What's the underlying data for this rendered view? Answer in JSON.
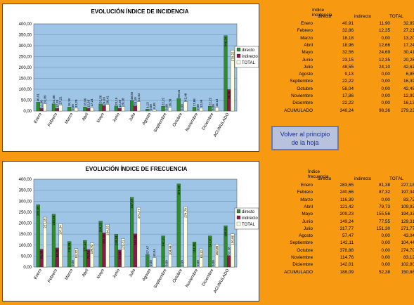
{
  "chart_data": [
    {
      "type": "bar",
      "title": "EVOLUCIÓN ÍNDICE DE INCIDENCIA",
      "categories": [
        "Enero",
        "Febrero",
        "Marzo",
        "Abril",
        "Mayo",
        "Junio",
        "Julio",
        "Agosto",
        "Septiembre",
        "Octubre",
        "Noviembre",
        "Diciembre",
        "ACUMULADO"
      ],
      "series": [
        {
          "name": "directo",
          "color": "#2e8b2e",
          "values": [
            40.91,
            32.86,
            18.18,
            18.96,
            32.56,
            23.15,
            48.55,
            9.13,
            22.22,
            58.04,
            17.86,
            22.22,
            346.24
          ]
        },
        {
          "name": "indirecto",
          "color": "#8b1a4a",
          "values": [
            11.9,
            12.35,
            0.0,
            12.66,
            24.69,
            12.35,
            24.1,
            0.0,
            0.0,
            0.0,
            0.0,
            0.0,
            98.36
          ]
        },
        {
          "name": "TOTAL",
          "color": "#ffffdd",
          "values": [
            32.89,
            27.21,
            13.2,
            17.24,
            30.41,
            20.28,
            42.62,
            6.85,
            16.39,
            42.48,
            12.99,
            16.13,
            279.22
          ]
        }
      ],
      "yticks": [
        "0,00",
        "50,00",
        "100,00",
        "150,00",
        "200,00",
        "250,00",
        "300,00",
        "350,00",
        "400,00"
      ],
      "ylim": [
        0,
        400
      ],
      "legend": "right"
    },
    {
      "type": "bar",
      "title": "EVOLUCIÓN ÍNDICE DE FRECUENCIA",
      "categories": [
        "Enero",
        "Febrero",
        "Marzo",
        "Abril",
        "Mayo",
        "Junio",
        "Julio",
        "Agosto",
        "Septiembre",
        "Octubre",
        "Noviembre",
        "Diciembre",
        "ACUMULADO"
      ],
      "series": [
        {
          "name": "directo",
          "color": "#2e8b2e",
          "values": [
            283.65,
            240.66,
            116.39,
            121.42,
            209.23,
            149.24,
            317.77,
            57.47,
            142.11,
            378.88,
            114.76,
            142.01,
            188.09
          ]
        },
        {
          "name": "indirecto",
          "color": "#8b1a4a",
          "values": [
            81.38,
            87.32,
            0.0,
            79.73,
            155.56,
            77.55,
            151.3,
            0.0,
            0.0,
            0.0,
            0.0,
            0.0,
            52.38
          ]
        },
        {
          "name": "TOTAL",
          "color": "#ffffdd",
          "values": [
            227.18,
            197.34,
            83.72,
            109.92,
            194.33,
            129.31,
            271.77,
            43.04,
            104.44,
            274.7,
            83.12,
            102.8,
            150.86
          ]
        }
      ],
      "yticks": [
        "0,00",
        "50,00",
        "100,00",
        "150,00",
        "200,00",
        "250,00",
        "300,00",
        "350,00",
        "400,00"
      ],
      "ylim": [
        0,
        400
      ],
      "legend": "right"
    }
  ],
  "table1": {
    "header_main": "índice incidencia",
    "header_directo": "directo",
    "header_indirecto": "indirecto",
    "header_total": "TOTAL",
    "rows": [
      [
        "Enero",
        "40,91",
        "11,90",
        "32,89"
      ],
      [
        "Febrero",
        "32,86",
        "12,35",
        "27,21"
      ],
      [
        "Marzo",
        "18,18",
        "0,00",
        "13,20"
      ],
      [
        "Abril",
        "18,96",
        "12,66",
        "17,24"
      ],
      [
        "Mayo",
        "32,56",
        "24,69",
        "30,41"
      ],
      [
        "Junio",
        "23,15",
        "12,35",
        "20,28"
      ],
      [
        "Julio",
        "48,55",
        "24,10",
        "42,62"
      ],
      [
        "Agosto",
        "9,13",
        "0,00",
        "6,85"
      ],
      [
        "Septiembre",
        "22,22",
        "0,00",
        "16,39"
      ],
      [
        "Octubre",
        "58,04",
        "0,00",
        "42,48"
      ],
      [
        "Noviembre",
        "17,86",
        "0,00",
        "12,99"
      ],
      [
        "Diciembre",
        "22,22",
        "0,00",
        "16,13"
      ],
      [
        "ACUMULADO",
        "346,24",
        "98,36",
        "279,22"
      ]
    ]
  },
  "table2": {
    "header_main": "Índice frecuencia",
    "header_directo": "directo",
    "header_indirecto": "indirecto",
    "header_total": "TOTAL",
    "rows": [
      [
        "Enero",
        "283,65",
        "81,38",
        "227,18"
      ],
      [
        "Febrero",
        "240,66",
        "87,32",
        "197,34"
      ],
      [
        "Marzo",
        "116,39",
        "0,00",
        "83,72"
      ],
      [
        "Abril",
        "121,42",
        "79,73",
        "109,92"
      ],
      [
        "Mayo",
        "209,23",
        "155,56",
        "194,33"
      ],
      [
        "Junio",
        "149,24",
        "77,55",
        "129,31"
      ],
      [
        "Julio",
        "317,77",
        "151,30",
        "271,77"
      ],
      [
        "Agosto",
        "57,47",
        "0,00",
        "43,04"
      ],
      [
        "Septiembre",
        "142,11",
        "0,00",
        "104,44"
      ],
      [
        "Octubre",
        "378,88",
        "0,00",
        "274,70"
      ],
      [
        "Noviembre",
        "114,76",
        "0,00",
        "83,12"
      ],
      [
        "Diciembre",
        "142,01",
        "0,00",
        "102,80"
      ],
      [
        "ACUMULADO",
        "188,09",
        "52,38",
        "150,86"
      ]
    ]
  },
  "button": {
    "label_line1": "Volver al principio",
    "label_line2": "de la hoja"
  }
}
